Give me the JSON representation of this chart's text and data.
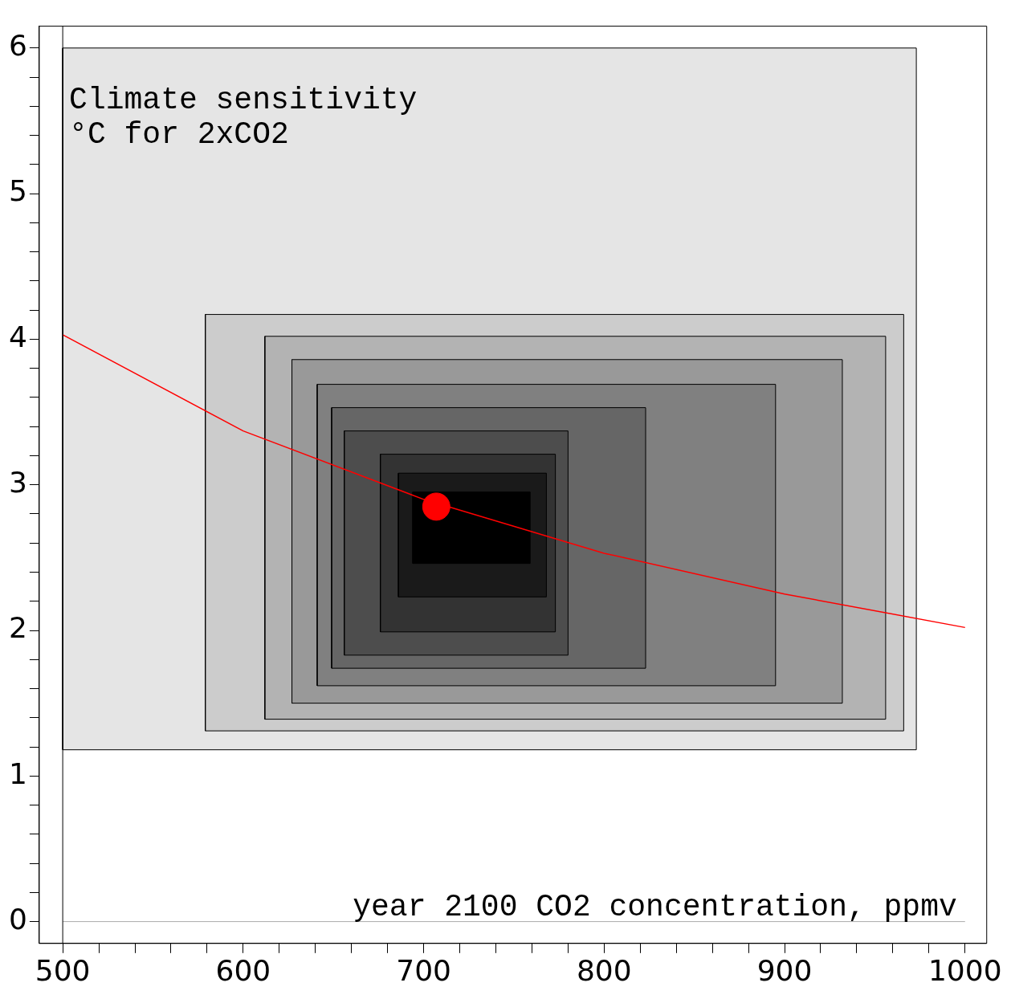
{
  "chart_data": {
    "type": "line",
    "xlabel": "year 2100 CO2 concentration, ppmv",
    "ylabel": "Climate sensitivity\n°C for 2xCO2",
    "xlim": [
      487,
      1012
    ],
    "ylim": [
      -0.15,
      6.15
    ],
    "xticks": [
      500,
      {
        "value": 520,
        "label": null
      },
      {
        "value": 540,
        "label": null
      },
      {
        "value": 560,
        "label": null
      },
      {
        "value": 580,
        "label": null
      },
      600,
      {
        "value": 620,
        "label": null
      },
      {
        "value": 640,
        "label": null
      },
      {
        "value": 660,
        "label": null
      },
      {
        "value": 680,
        "label": null
      },
      700,
      {
        "value": 720,
        "label": null
      },
      {
        "value": 740,
        "label": null
      },
      {
        "value": 760,
        "label": null
      },
      {
        "value": 780,
        "label": null
      },
      800,
      {
        "value": 820,
        "label": null
      },
      {
        "value": 840,
        "label": null
      },
      {
        "value": 860,
        "label": null
      },
      {
        "value": 880,
        "label": null
      },
      900,
      {
        "value": 920,
        "label": null
      },
      {
        "value": 940,
        "label": null
      },
      {
        "value": 960,
        "label": null
      },
      {
        "value": 980,
        "label": null
      },
      1000
    ],
    "yticks": [
      0,
      {
        "value": 0.2,
        "label": null
      },
      {
        "value": 0.4,
        "label": null
      },
      {
        "value": 0.6,
        "label": null
      },
      {
        "value": 0.8,
        "label": null
      },
      1,
      {
        "value": 1.2,
        "label": null
      },
      {
        "value": 1.4,
        "label": null
      },
      {
        "value": 1.6,
        "label": null
      },
      {
        "value": 1.8,
        "label": null
      },
      2,
      {
        "value": 2.2,
        "label": null
      },
      {
        "value": 2.4,
        "label": null
      },
      {
        "value": 2.6,
        "label": null
      },
      {
        "value": 2.8,
        "label": null
      },
      3,
      {
        "value": 3.2,
        "label": null
      },
      {
        "value": 3.4,
        "label": null
      },
      {
        "value": 3.6,
        "label": null
      },
      {
        "value": 3.8,
        "label": null
      },
      4,
      {
        "value": 4.2,
        "label": null
      },
      {
        "value": 4.4,
        "label": null
      },
      {
        "value": 4.6,
        "label": null
      },
      {
        "value": 4.8,
        "label": null
      },
      5,
      {
        "value": 5.2,
        "label": null
      },
      {
        "value": 5.4,
        "label": null
      },
      {
        "value": 5.6,
        "label": null
      },
      {
        "value": 5.8,
        "label": null
      },
      6
    ],
    "grid": false,
    "legend": false,
    "ref_lines": [
      {
        "axis": "y",
        "value": 0,
        "color": "#aaaaaa"
      },
      {
        "axis": "x",
        "value": 500,
        "color": "#000000"
      }
    ],
    "series": [
      {
        "type": "area",
        "color": "#e5e5e5",
        "x": [
          500,
          973,
          973,
          500,
          500
        ],
        "values": [
          1.18,
          1.18,
          6,
          6,
          1.18
        ]
      },
      {
        "type": "area",
        "color": "#cccccc",
        "x": [
          579,
          966,
          966,
          579,
          579
        ],
        "values": [
          1.31,
          1.31,
          4.17,
          4.17,
          1.31
        ]
      },
      {
        "type": "area",
        "color": "#b3b3b3",
        "x": [
          612,
          956,
          956,
          612,
          612
        ],
        "values": [
          1.39,
          1.39,
          4.02,
          4.02,
          1.39
        ]
      },
      {
        "type": "area",
        "color": "#999999",
        "x": [
          627,
          932,
          932,
          627,
          627
        ],
        "values": [
          1.5,
          1.5,
          3.86,
          3.86,
          1.5
        ]
      },
      {
        "type": "area",
        "color": "#808080",
        "x": [
          641,
          895,
          895,
          641,
          641
        ],
        "values": [
          1.62,
          1.62,
          3.69,
          3.69,
          1.62
        ]
      },
      {
        "type": "area",
        "color": "#666666",
        "x": [
          649,
          823,
          823,
          649,
          649
        ],
        "values": [
          1.74,
          1.74,
          3.53,
          3.53,
          1.74
        ]
      },
      {
        "type": "area",
        "color": "#4d4d4d",
        "x": [
          656,
          780,
          780,
          656,
          656
        ],
        "values": [
          1.83,
          1.83,
          3.37,
          3.37,
          1.83
        ]
      },
      {
        "type": "area",
        "color": "#333333",
        "x": [
          676,
          773,
          773,
          676,
          676
        ],
        "values": [
          1.99,
          1.99,
          3.21,
          3.21,
          1.99
        ]
      },
      {
        "type": "area",
        "color": "#1a1a1a",
        "x": [
          686,
          768,
          768,
          686,
          686
        ],
        "values": [
          2.23,
          2.23,
          3.08,
          3.08,
          2.23
        ]
      },
      {
        "type": "area",
        "color": "#000000",
        "x": [
          694,
          759,
          759,
          694,
          694
        ],
        "values": [
          2.46,
          2.46,
          2.95,
          2.95,
          2.46
        ]
      },
      {
        "type": "line",
        "color": "#ff0000",
        "marker": "none",
        "x": [
          500,
          600,
          700,
          800,
          900,
          1000
        ],
        "values": [
          4.03,
          3.37,
          2.9,
          2.53,
          2.25,
          2.02
        ]
      },
      {
        "type": "scatter",
        "color": "#ff0000",
        "marker": "circle",
        "x": [
          707
        ],
        "values": [
          2.85
        ]
      }
    ]
  }
}
